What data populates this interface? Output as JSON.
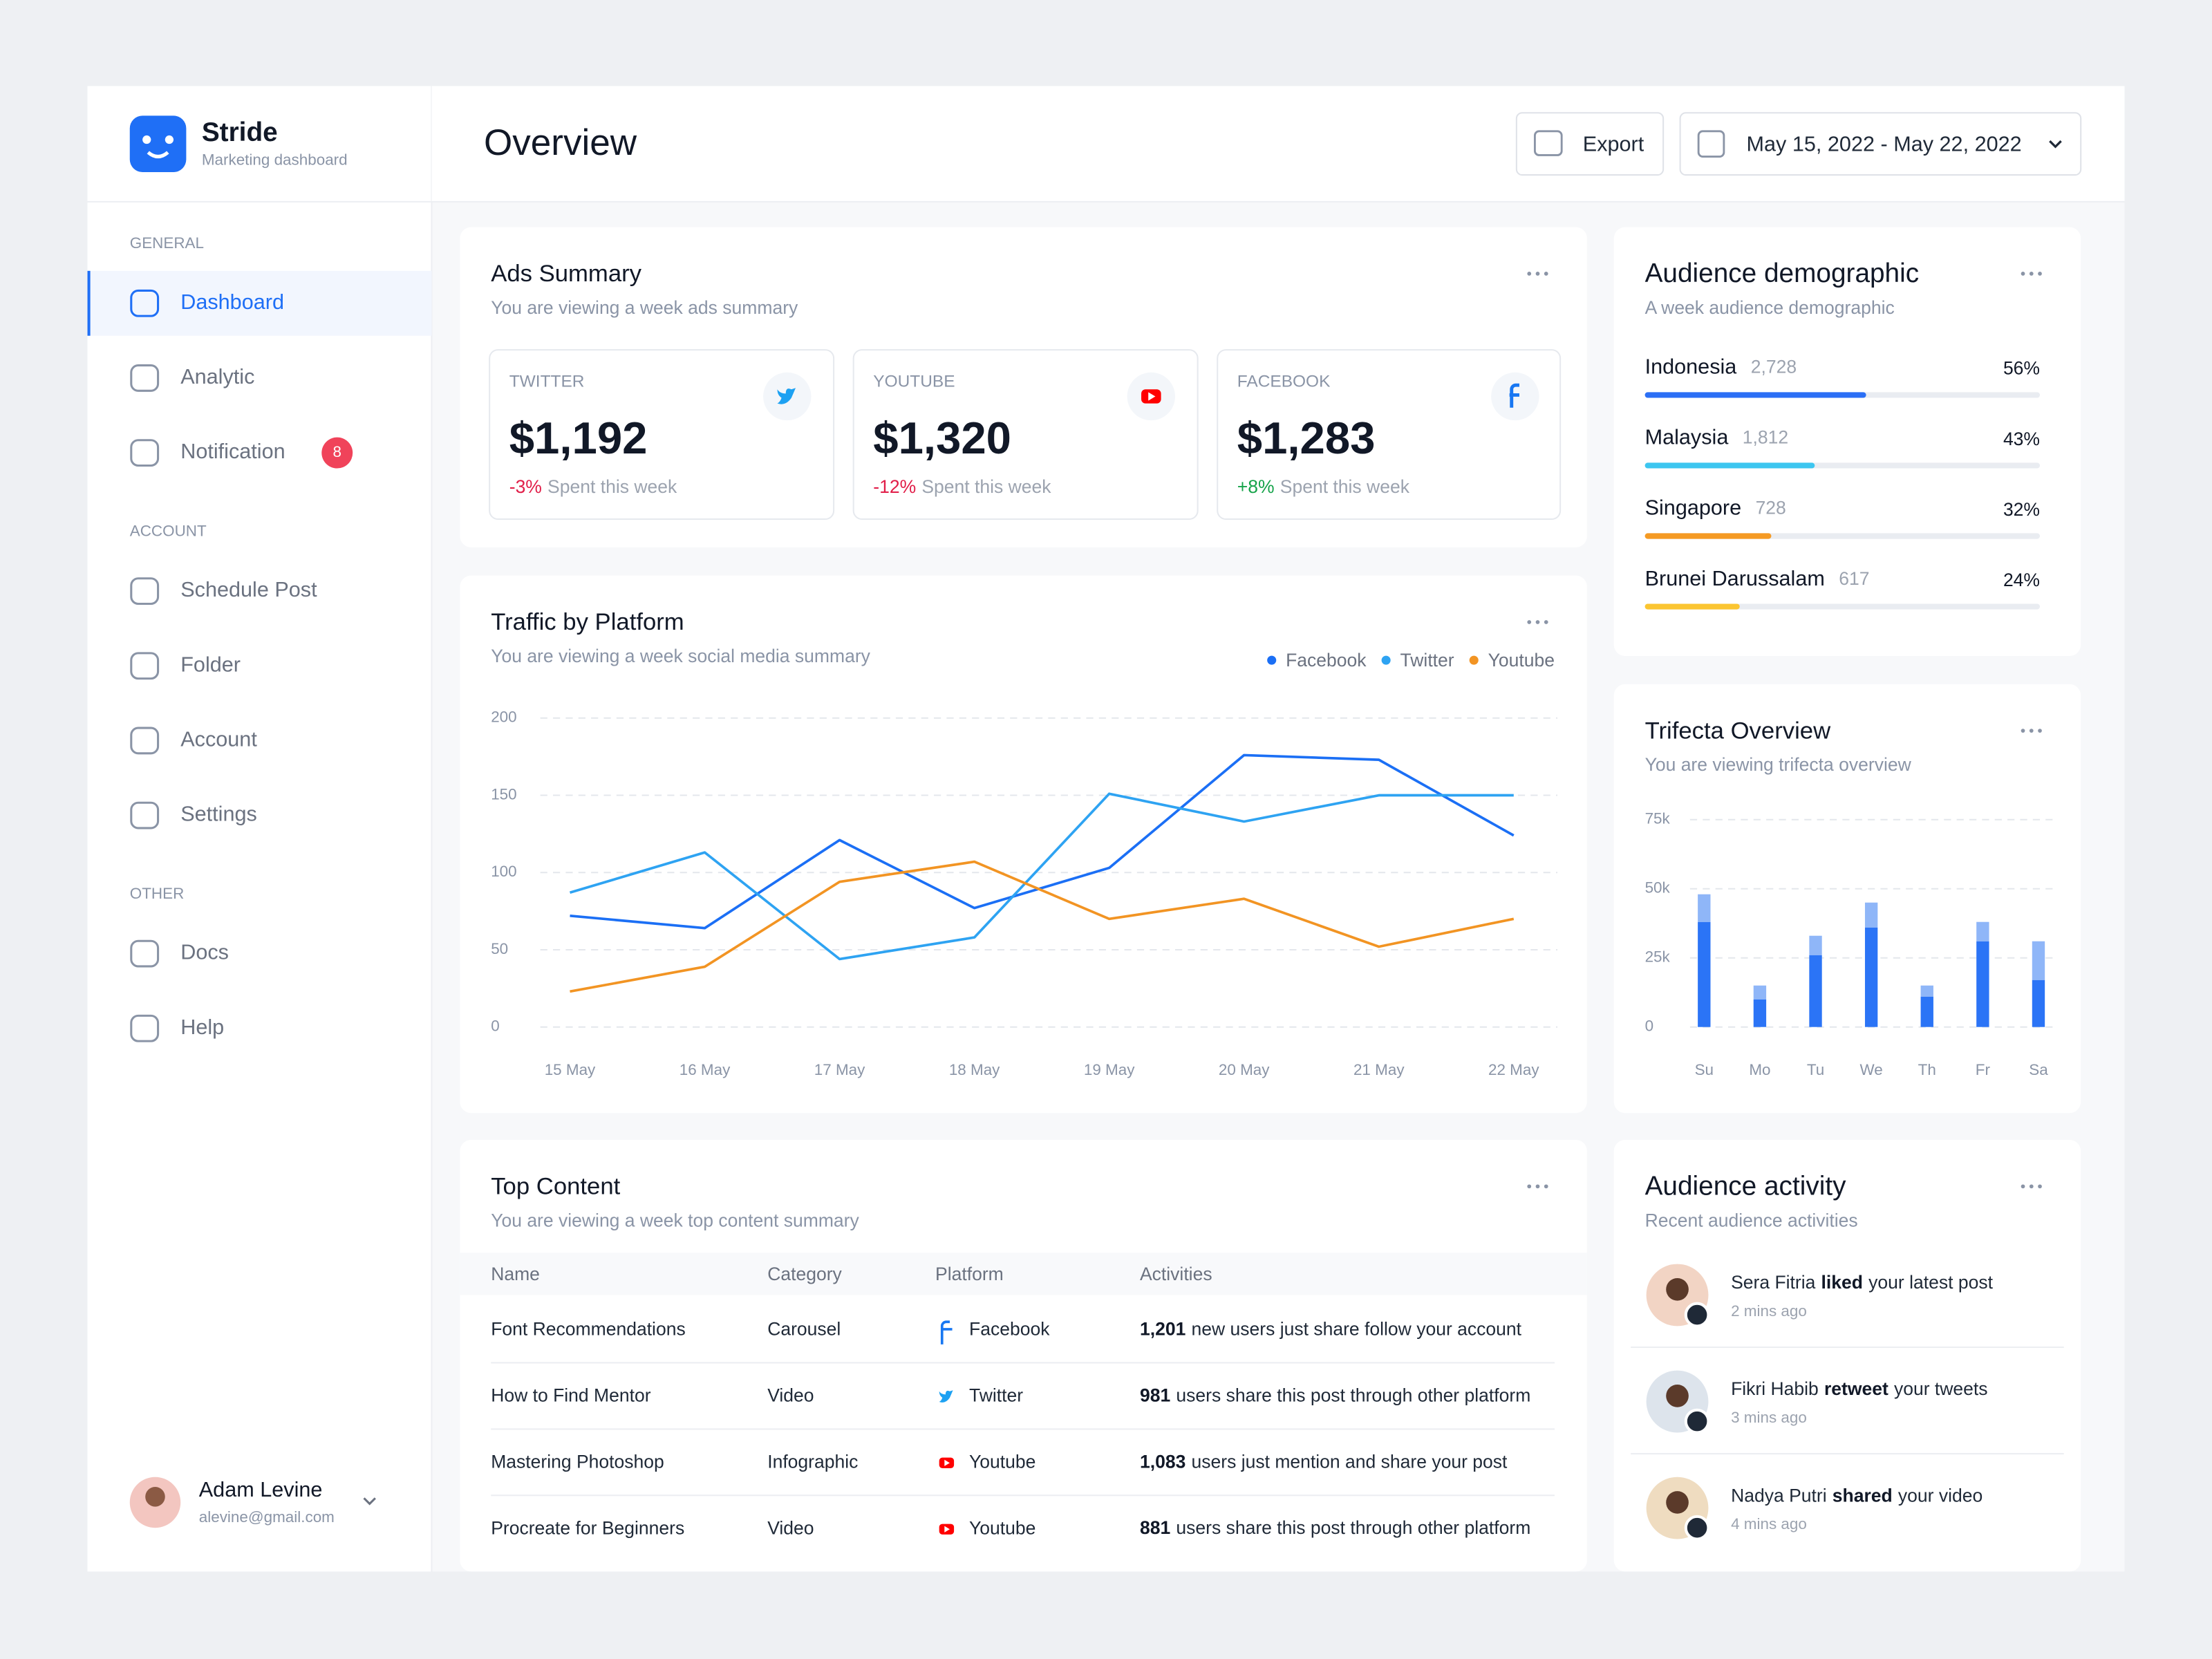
{
  "brand": {
    "name": "Stride",
    "tagline": "Marketing dashboard"
  },
  "sidebar": {
    "sections": [
      {
        "title": "GENERAL",
        "items": [
          {
            "label": "Dashboard",
            "active": true
          },
          {
            "label": "Analytic"
          },
          {
            "label": "Notification",
            "badge": 8
          }
        ]
      },
      {
        "title": "ACCOUNT",
        "items": [
          {
            "label": "Schedule Post"
          },
          {
            "label": "Folder"
          },
          {
            "label": "Account"
          },
          {
            "label": "Settings"
          }
        ]
      },
      {
        "title": "OTHER",
        "items": [
          {
            "label": "Docs"
          },
          {
            "label": "Help"
          }
        ]
      }
    ],
    "user": {
      "name": "Adam Levine",
      "email": "alevine@gmail.com"
    }
  },
  "header": {
    "title": "Overview",
    "export": "Export",
    "date_range": "May 15, 2022 - May 22, 2022"
  },
  "ads_summary": {
    "title": "Ads Summary",
    "subtitle": "You are viewing a week ads summary",
    "cards": [
      {
        "platform": "TWITTER",
        "amount": "$1,192",
        "change": "-3%",
        "note": "Spent this week"
      },
      {
        "platform": "YOUTUBE",
        "amount": "$1,320",
        "change": "-12%",
        "note": "Spent this week"
      },
      {
        "platform": "FACEBOOK",
        "amount": "$1,283",
        "change": "+8%",
        "note": "Spent this week"
      }
    ]
  },
  "traffic": {
    "title": "Traffic by Platform",
    "subtitle": "You are viewing a week social media summary",
    "chart_data": {
      "type": "line",
      "categories": [
        "15 May",
        "16 May",
        "17 May",
        "18 May",
        "19 May",
        "20 May",
        "21 May",
        "22 May"
      ],
      "series": [
        {
          "name": "Facebook",
          "color": "#1b6ff5",
          "values": [
            72,
            64,
            121,
            77,
            103,
            176,
            173,
            124
          ]
        },
        {
          "name": "Twitter",
          "color": "#2ea3f2",
          "values": [
            87,
            113,
            44,
            58,
            151,
            133,
            150,
            150
          ]
        },
        {
          "name": "Youtube",
          "color": "#f29423",
          "values": [
            23,
            39,
            94,
            107,
            70,
            83,
            52,
            70
          ]
        }
      ],
      "ylim": [
        0,
        200
      ],
      "yticks": [
        0,
        50,
        100,
        150,
        200
      ],
      "grid": true
    }
  },
  "top_content": {
    "title": "Top Content",
    "subtitle": "You are viewing a week top content summary",
    "columns": [
      "Name",
      "Category",
      "Platform",
      "Activities"
    ],
    "rows": [
      {
        "name": "Font Recommendations",
        "category": "Carousel",
        "platform": "Facebook",
        "count": "1,201",
        "activity": "new users just share follow your account"
      },
      {
        "name": "How to Find Mentor",
        "category": "Video",
        "platform": "Twitter",
        "count": "981",
        "activity": "users share this post through other platform"
      },
      {
        "name": "Mastering Photoshop",
        "category": "Infographic",
        "platform": "Youtube",
        "count": "1,083",
        "activity": "users just mention and share your post"
      },
      {
        "name": "Procreate for Beginners",
        "category": "Video",
        "platform": "Youtube",
        "count": "881",
        "activity": "users share this post through other platform"
      }
    ]
  },
  "demographic": {
    "title": "Audience demographic",
    "subtitle": "A week audience demographic",
    "items": [
      {
        "country": "Indonesia",
        "count": "2,728",
        "value": 56,
        "label": "56%",
        "color": "#2b6ff5"
      },
      {
        "country": "Malaysia",
        "count": "1,812",
        "value": 43,
        "label": "43%",
        "color": "#3dc6f0"
      },
      {
        "country": "Singapore",
        "count": "728",
        "value": 32,
        "label": "32%",
        "color": "#f59a23"
      },
      {
        "country": "Brunei Darussalam",
        "count": "617",
        "value": 24,
        "label": "24%",
        "color": "#fbc531"
      }
    ]
  },
  "trifecta": {
    "title": "Trifecta Overview",
    "subtitle": "You are viewing trifecta overview",
    "chart_data": {
      "type": "bar",
      "stacked": true,
      "categories": [
        "Su",
        "Mo",
        "Tu",
        "We",
        "Th",
        "Fr",
        "Sa"
      ],
      "series": [
        {
          "color": "#2b74f6",
          "values": [
            38000,
            10000,
            26000,
            36000,
            11000,
            31000,
            17000
          ]
        },
        {
          "color": "#8fb6f8",
          "values": [
            10000,
            5000,
            7000,
            9000,
            4000,
            7000,
            14000
          ]
        }
      ],
      "ylim": [
        0,
        75000
      ],
      "yticks": [
        0,
        {
          "value": 25000,
          "label": "25k"
        },
        {
          "value": 50000,
          "label": "50k"
        },
        {
          "value": 75000,
          "label": "75k"
        }
      ],
      "grid": true
    }
  },
  "activity": {
    "title": "Audience activity",
    "subtitle": "Recent audience activities",
    "items": [
      {
        "name": "Sera Fitria",
        "action": "liked",
        "object": "your latest post",
        "time": "2 mins ago"
      },
      {
        "name": "Fikri Habib",
        "action": "retweet",
        "object": "your tweets",
        "time": "3 mins ago"
      },
      {
        "name": "Nadya Putri",
        "action": "shared",
        "object": "your video",
        "time": "4 mins ago"
      }
    ]
  }
}
